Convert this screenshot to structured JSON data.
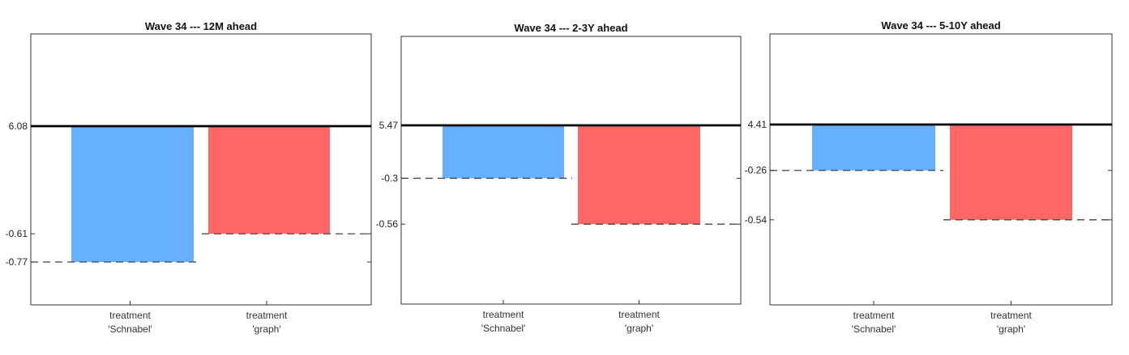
{
  "chart_data": [
    {
      "type": "bar",
      "title": "Wave 34 --- 12M ahead",
      "categories": [
        "treatment\n'Schnabel'",
        "treatment\n'graph'"
      ],
      "baseline": 6.08,
      "baseline_label": "6.08",
      "values": [
        -0.77,
        -0.61
      ],
      "value_labels": [
        "-0.77",
        "-0.61"
      ],
      "colors": [
        "#66b0ff",
        "#ff6666"
      ]
    },
    {
      "type": "bar",
      "title": "Wave 34 --- 2-3Y ahead",
      "categories": [
        "treatment\n'Schnabel'",
        "treatment\n'graph'"
      ],
      "baseline": 5.47,
      "baseline_label": "5.47",
      "values": [
        -0.3,
        -0.56
      ],
      "value_labels": [
        "-0.3",
        "-0.56"
      ],
      "colors": [
        "#66b0ff",
        "#ff6666"
      ]
    },
    {
      "type": "bar",
      "title": "Wave 34 --- 5-10Y ahead",
      "categories": [
        "treatment\n'Schnabel'",
        "treatment\n'graph'"
      ],
      "baseline": 4.41,
      "baseline_label": "4.41",
      "values": [
        -0.26,
        -0.54
      ],
      "value_labels": [
        "-0.26",
        "-0.54"
      ],
      "colors": [
        "#66b0ff",
        "#ff6666"
      ]
    }
  ]
}
